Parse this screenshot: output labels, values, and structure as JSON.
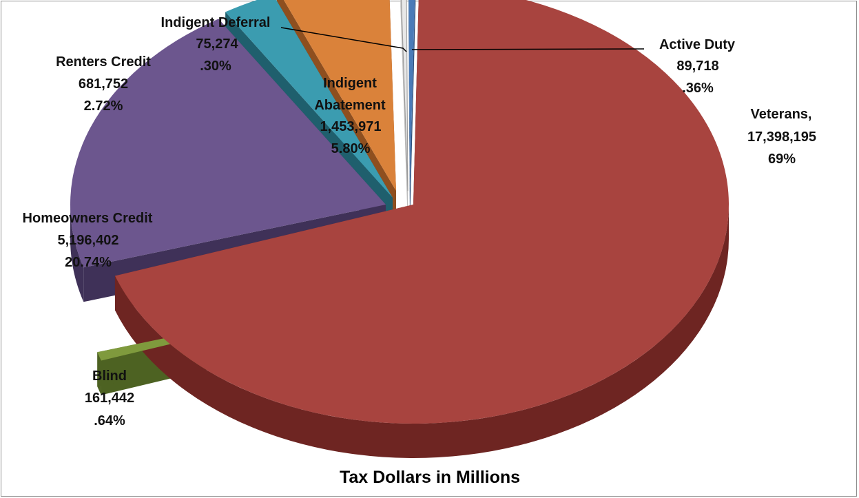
{
  "chart_data": {
    "type": "pie",
    "title": "Tax Dollars in Millions",
    "slices": [
      {
        "name": "Veterans,",
        "value_label": "17,398,195",
        "pct_label": "69%",
        "value": 17398195,
        "percent": 69.0,
        "color": "#a8443f",
        "dark": "#6e2522"
      },
      {
        "name": "Blind",
        "value_label": "161,442",
        "pct_label": ".64%",
        "value": 161442,
        "percent": 0.64,
        "color": "#7f9a3d",
        "dark": "#4d6222"
      },
      {
        "name": "Homeowners Credit",
        "value_label": "5,196,402",
        "pct_label": "20.74%",
        "value": 5196402,
        "percent": 20.74,
        "color": "#6c568e",
        "dark": "#3f3158"
      },
      {
        "name": "Renters Credit",
        "value_label": "681,752",
        "pct_label": "2.72%",
        "value": 681752,
        "percent": 2.72,
        "color": "#3b9cb0",
        "dark": "#1f5f6d"
      },
      {
        "name": "Indigent Abatement",
        "value_label": "1,453,971",
        "pct_label": "5.80%",
        "value": 1453971,
        "percent": 5.8,
        "color": "#da823a",
        "dark": "#8e4f1f"
      },
      {
        "name": "Indigent Deferral",
        "value_label": "75,274",
        "pct_label": ".30%",
        "value": 75274,
        "percent": 0.3,
        "color": "#e8e8e8",
        "dark": "#bdbdbd"
      },
      {
        "name": "Active Duty",
        "value_label": "89,718",
        "pct_label": ".36%",
        "value": 89718,
        "percent": 0.36,
        "color": "#4a7bb8",
        "dark": "#2e4f7a"
      }
    ]
  }
}
